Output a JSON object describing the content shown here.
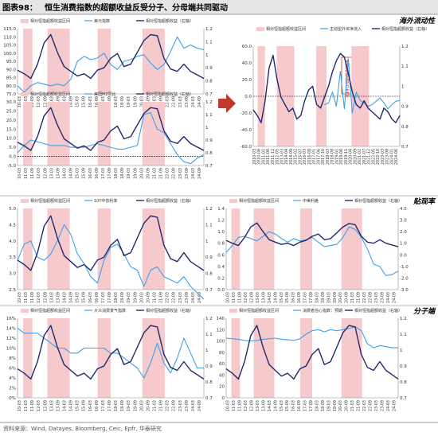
{
  "figure": {
    "label": "图表98：",
    "title": "恒生消费指数的超额收益反受分子、分母端共同驱动",
    "source": "资料来源：Wind, Datayes, Bloomberg, Ceic, Epfr, 华泰研究",
    "colors": {
      "title_bar": "#e6e6e6",
      "border": "#9a9a9a",
      "dark": "#1f2a6b",
      "light": "#3ea0e6",
      "shade": "#f6c9cd",
      "arrow": "#c0392b",
      "divider": "#bbbbbb"
    }
  },
  "sections": [
    {
      "label": "海外流动性"
    },
    {
      "label": "贴现率"
    },
    {
      "label": "分子端"
    }
  ],
  "annotations": [
    {
      "text": "主动型外资占主导"
    }
  ],
  "chart_data": [
    {
      "id": "usd",
      "type": "line",
      "legend": [
        "相对恒指超额收益区间",
        "美元指数",
        "相对恒指超额收益（右轴）"
      ],
      "left_ticks": [
        "115.0",
        "110.0",
        "105.0",
        "100.0",
        "95.0",
        "90.0",
        "85.0",
        "80.0",
        "75.0"
      ],
      "right_ticks": [
        "1.2",
        "1.1",
        "1",
        "0.9",
        "0.8",
        "0.7"
      ],
      "ylim_left": [
        75,
        115
      ],
      "ylim_right": [
        0.65,
        1.2
      ],
      "x_ticks": [
        "10-03",
        "11-03",
        "11-09",
        "12-03",
        "12-09",
        "13-03",
        "13-09",
        "14-03",
        "14-09",
        "15-03",
        "15-09",
        "16-03",
        "16-09",
        "17-03",
        "17-09",
        "18-03",
        "18-09",
        "19-03",
        "19-09",
        "20-03",
        "20-09",
        "21-03",
        "21-09",
        "22-03",
        "22-09",
        "23-03",
        "23-09",
        "24-03",
        "24-09"
      ],
      "shade": [
        [
          0.03,
          0.08
        ],
        [
          0.16,
          0.28
        ],
        [
          0.43,
          0.5
        ],
        [
          0.67,
          0.79
        ]
      ],
      "series": [
        {
          "name": "美元指数",
          "axis": "left",
          "values": [
            80,
            76,
            80,
            82,
            81,
            80,
            81,
            80,
            84,
            95,
            98,
            96,
            97,
            100,
            93,
            90,
            95,
            96,
            98,
            99,
            94,
            90,
            93,
            101,
            110,
            103,
            105,
            103,
            102
          ]
        },
        {
          "name": "相对恒指超额收益（右轴）",
          "axis": "right",
          "values": [
            0.85,
            0.82,
            0.78,
            0.9,
            1.08,
            1.15,
            1.0,
            0.88,
            0.84,
            0.8,
            0.82,
            0.78,
            0.85,
            0.87,
            0.95,
            0.99,
            0.88,
            0.9,
            1.0,
            1.1,
            1.15,
            1.14,
            0.95,
            0.86,
            0.84,
            0.9,
            0.84,
            0.81,
            0.78
          ]
        }
      ]
    },
    {
      "id": "rmb",
      "type": "line",
      "legend": [
        "相对恒指超额收益区间",
        "美国M2同比",
        "相对恒指超额收益（右轴）"
      ],
      "left_ticks": [
        "30.0",
        "25.0",
        "20.0",
        "15.0",
        "10.0",
        "5.0",
        "0.0",
        "-5.0"
      ],
      "right_ticks": [
        "1.2",
        "1.1",
        "1",
        "0.9",
        "0.8",
        "0.7"
      ],
      "ylim_left": [
        -5,
        30
      ],
      "ylim_right": [
        0.65,
        1.2
      ],
      "x_ticks": [
        "10-03",
        "11-03",
        "11-09",
        "12-03",
        "12-09",
        "13-03",
        "13-09",
        "14-03",
        "14-09",
        "15-03",
        "15-09",
        "16-03",
        "16-09",
        "17-03",
        "17-09",
        "18-03",
        "18-09",
        "19-03",
        "19-09",
        "20-03",
        "20-09",
        "21-03",
        "21-09",
        "22-03",
        "22-09",
        "23-03",
        "23-09",
        "24-03",
        "24-09"
      ],
      "shade": [
        [
          0.03,
          0.08
        ],
        [
          0.16,
          0.28
        ],
        [
          0.43,
          0.5
        ],
        [
          0.67,
          0.79
        ]
      ],
      "series": [
        {
          "name": "美国M2同比",
          "axis": "left",
          "values": [
            2,
            6,
            9,
            8,
            7,
            6,
            6,
            6,
            5,
            5,
            5,
            6,
            7,
            6,
            5,
            4,
            4,
            5,
            6,
            23,
            24,
            15,
            13,
            7,
            1,
            -3,
            -4,
            -1,
            1
          ]
        },
        {
          "name": "相对恒指超额收益（右轴）",
          "axis": "right",
          "values": [
            0.85,
            0.82,
            0.78,
            0.9,
            1.08,
            1.15,
            1.0,
            0.88,
            0.84,
            0.8,
            0.82,
            0.78,
            0.85,
            0.87,
            0.95,
            0.99,
            0.88,
            0.9,
            1.0,
            1.1,
            1.15,
            1.14,
            0.95,
            0.86,
            0.84,
            0.9,
            0.84,
            0.81,
            0.78
          ]
        }
      ]
    },
    {
      "id": "fund",
      "type": "line",
      "legend": [
        "相对恒指超额收益区间",
        "主动型外资净流入",
        "相对恒指超额收益（右轴）"
      ],
      "left_ticks": [
        "60.0",
        "40.0",
        "20.0",
        "0.0",
        "-20.0",
        "-40.0",
        "-60.0"
      ],
      "right_ticks": [
        "1.2",
        "1.1",
        "1",
        "0.9",
        "0.8",
        "0.7"
      ],
      "ylim_left": [
        -60,
        60
      ],
      "ylim_right": [
        0.65,
        1.2
      ],
      "x_ticks": [
        "2010-03",
        "2010-08",
        "2011-01",
        "2011-06",
        "2011-12",
        "2012-05",
        "2013-03",
        "2014-04",
        "2014-09",
        "2015-02",
        "2015-07",
        "2016-03",
        "2016-08",
        "2017-01",
        "2017-06",
        "2017-10",
        "2018-03",
        "2018-08",
        "2019-01",
        "2019-06",
        "2019-11",
        "2020-04",
        "2020-09",
        "2021-02",
        "2021-07",
        "2021-12",
        "2022-05",
        "2022-10",
        "2023-03",
        "2023-08",
        "2024-01",
        "2024-06"
      ],
      "shade": [
        [
          0.03,
          0.08
        ],
        [
          0.16,
          0.28
        ],
        [
          0.43,
          0.5
        ],
        [
          0.67,
          0.79
        ]
      ],
      "series": [
        {
          "name": "主动型外资净流入",
          "axis": "left",
          "values": [
            null,
            null,
            null,
            null,
            null,
            null,
            null,
            null,
            null,
            null,
            null,
            null,
            null,
            null,
            null,
            null,
            null,
            null,
            -10,
            -8,
            5,
            -12,
            30,
            -15,
            45,
            -20,
            5,
            -5,
            -8,
            -12,
            -10,
            -6,
            -2,
            -8,
            -15,
            -10,
            -6,
            -5
          ]
        },
        {
          "name": "相对恒指超额收益（右轴）",
          "axis": "right",
          "values": [
            0.85,
            0.82,
            0.78,
            0.9,
            1.08,
            1.15,
            1.02,
            0.92,
            0.88,
            0.84,
            0.86,
            0.8,
            0.82,
            0.9,
            0.96,
            0.98,
            0.88,
            0.86,
            0.92,
            0.98,
            1.06,
            1.12,
            1.16,
            1.14,
            1.05,
            0.95,
            0.88,
            0.86,
            0.9,
            0.86,
            0.84,
            0.82,
            0.8,
            0.86,
            0.84,
            0.8,
            0.78,
            0.82
          ]
        }
      ]
    },
    {
      "id": "us10y",
      "type": "line",
      "legend": [
        "相对恒指超额收益区间",
        "10Y中债利率",
        "相对恒指超额收益（右轴）"
      ],
      "left_ticks": [
        "5.0",
        "4.5",
        "4.0",
        "3.5",
        "3.0",
        "2.5"
      ],
      "right_ticks": [
        "1.2",
        "1.1",
        "1",
        "0.9",
        "0.8",
        "0.7"
      ],
      "ylim_left": [
        2.5,
        5.0
      ],
      "ylim_right": [
        0.65,
        1.2
      ],
      "x_ticks": [
        "10-03",
        "11-03",
        "11-09",
        "12-03",
        "12-09",
        "13-03",
        "13-09",
        "14-03",
        "14-09",
        "15-03",
        "15-09",
        "16-03",
        "16-09",
        "17-03",
        "17-09",
        "18-03",
        "18-09",
        "19-03",
        "19-09",
        "20-03",
        "20-09",
        "21-03",
        "21-09",
        "22-03",
        "22-09",
        "23-03",
        "23-09",
        "24-03",
        "24-09"
      ],
      "shade": [
        [
          0.03,
          0.08
        ],
        [
          0.16,
          0.28
        ],
        [
          0.43,
          0.5
        ],
        [
          0.67,
          0.79
        ]
      ],
      "series": [
        {
          "name": "10Y中债利率",
          "axis": "left",
          "values": [
            3.4,
            3.9,
            4.0,
            3.5,
            3.4,
            3.6,
            4.0,
            4.5,
            4.2,
            3.6,
            3.3,
            2.9,
            2.7,
            3.4,
            3.8,
            3.9,
            3.6,
            3.2,
            3.1,
            2.6,
            3.1,
            3.2,
            2.9,
            2.8,
            2.7,
            2.9,
            2.6,
            2.4,
            2.2
          ]
        },
        {
          "name": "相对恒指超额收益（右轴）",
          "axis": "right",
          "values": [
            0.85,
            0.82,
            0.78,
            0.9,
            1.08,
            1.15,
            1.0,
            0.88,
            0.84,
            0.8,
            0.82,
            0.78,
            0.85,
            0.87,
            0.95,
            0.99,
            0.88,
            0.9,
            1.0,
            1.1,
            1.15,
            1.14,
            0.95,
            0.86,
            0.84,
            0.9,
            0.84,
            0.81,
            0.78
          ]
        }
      ]
    },
    {
      "id": "rate",
      "type": "line",
      "legend": [
        "相对恒指超额收益区间",
        "中美利差",
        "相对恒指超额收益（右轴）"
      ],
      "left_ticks": [
        "1.4",
        "1.2",
        "1.0",
        "0.8",
        "0.6",
        "0.4",
        "0.2",
        "0.0"
      ],
      "right_ticks": [
        "4.0",
        "3.0",
        "2.0",
        "1.0",
        "0.0",
        "-1.0",
        "-2.0",
        "-3.0"
      ],
      "ylim_left": [
        0,
        1.4
      ],
      "ylim_right": [
        -3,
        4
      ],
      "x_ticks": [
        "10-03",
        "11-03",
        "11-09",
        "12-03",
        "12-09",
        "13-03",
        "13-09",
        "14-03",
        "14-09",
        "15-03",
        "15-09",
        "16-03",
        "16-09",
        "17-03",
        "17-09",
        "18-03",
        "18-09",
        "19-03",
        "19-09",
        "20-03",
        "20-09",
        "21-03",
        "21-09",
        "22-03",
        "22-09",
        "23-03",
        "23-09",
        "24-03",
        "24-09"
      ],
      "shade": [
        [
          0.03,
          0.08
        ],
        [
          0.16,
          0.28
        ],
        [
          0.43,
          0.5
        ],
        [
          0.67,
          0.79
        ]
      ],
      "series": [
        {
          "name": "中美利差",
          "axis": "right",
          "values": [
            0.2,
            0.8,
            1.5,
            1.6,
            1.4,
            1.2,
            1.6,
            2.0,
            1.8,
            1.4,
            1.1,
            1.4,
            1.2,
            1.3,
            1.5,
            1.1,
            0.7,
            0.8,
            0.9,
            1.5,
            2.4,
            2.2,
            1.5,
            0.5,
            -0.8,
            -1.0,
            -1.8,
            -1.7,
            -1.4
          ]
        },
        {
          "name": "相对恒指超额收益（右轴）",
          "axis": "left",
          "values": [
            0.85,
            0.8,
            0.76,
            0.9,
            1.08,
            1.15,
            1.0,
            0.86,
            0.82,
            0.78,
            0.8,
            0.76,
            0.82,
            0.85,
            0.92,
            0.96,
            0.86,
            0.88,
            0.98,
            1.08,
            1.14,
            1.12,
            0.92,
            0.82,
            0.8,
            0.86,
            0.8,
            0.77,
            0.74
          ]
        }
      ]
    },
    {
      "id": "consumer",
      "type": "line",
      "legend": [
        "相对恒指超额收益区间",
        "大众消费景气指数",
        "相对恒指超额收益（右轴）"
      ],
      "left_ticks": [
        "16%",
        "14%",
        "12%",
        "10%",
        "8%",
        "6%",
        "4%",
        "2%",
        "0%"
      ],
      "right_ticks": [
        "1.2",
        "1.1",
        "1",
        "0.9",
        "0.8",
        "0.7"
      ],
      "ylim_left": [
        0,
        16
      ],
      "ylim_right": [
        0.65,
        1.2
      ],
      "x_ticks": [
        "10-03",
        "11-03",
        "11-09",
        "12-03",
        "12-09",
        "13-03",
        "13-09",
        "14-03",
        "14-09",
        "15-03",
        "15-09",
        "16-03",
        "16-09",
        "17-03",
        "17-09",
        "18-03",
        "18-09",
        "19-03",
        "19-09",
        "20-03",
        "20-09",
        "21-03",
        "21-09",
        "22-03",
        "22-09",
        "23-03",
        "23-09",
        "24-03",
        "24-09"
      ],
      "shade": [
        [
          0.03,
          0.08
        ],
        [
          0.16,
          0.28
        ],
        [
          0.43,
          0.5
        ],
        [
          0.67,
          0.79
        ]
      ],
      "series": [
        {
          "name": "大众消费景气指数",
          "axis": "left",
          "values": [
            14,
            13,
            13,
            13,
            12,
            11,
            10,
            10,
            9,
            9,
            10,
            10,
            10,
            10,
            9,
            9,
            8,
            7,
            6,
            4,
            7,
            11,
            7,
            5,
            8,
            12,
            9,
            6,
            6
          ]
        },
        {
          "name": "相对恒指超额收益（右轴）",
          "axis": "right",
          "values": [
            0.85,
            0.82,
            0.78,
            0.9,
            1.08,
            1.15,
            1.0,
            0.88,
            0.84,
            0.8,
            0.82,
            0.78,
            0.85,
            0.87,
            0.95,
            0.99,
            0.88,
            0.9,
            1.0,
            1.1,
            1.15,
            1.14,
            0.95,
            0.86,
            0.84,
            0.9,
            0.84,
            0.81,
            0.78
          ]
        }
      ]
    },
    {
      "id": "confidence",
      "type": "line",
      "legend": [
        "相对恒指超额收益区间",
        "消费者信心指数：预期",
        "相对恒指超额收益（右轴）"
      ],
      "left_ticks": [
        "140",
        "120",
        "100",
        "80",
        "60",
        "40",
        "20",
        "0"
      ],
      "right_ticks": [
        "1.2",
        "1.1",
        "1",
        "0.9",
        "0.8",
        "0.7"
      ],
      "ylim_left": [
        0,
        140
      ],
      "ylim_right": [
        0.65,
        1.2
      ],
      "x_ticks": [
        "10-03",
        "11-03",
        "11-09",
        "12-03",
        "12-09",
        "13-03",
        "13-09",
        "14-03",
        "14-09",
        "15-03",
        "15-09",
        "16-03",
        "16-09",
        "17-03",
        "17-09",
        "18-03",
        "18-09",
        "19-03",
        "19-09",
        "20-03",
        "20-09",
        "21-03",
        "21-09",
        "22-03",
        "22-09",
        "23-03",
        "23-09",
        "24-03",
        "24-09"
      ],
      "shade": [
        [
          0.03,
          0.08
        ],
        [
          0.16,
          0.28
        ],
        [
          0.43,
          0.5
        ],
        [
          0.67,
          0.79
        ]
      ],
      "series": [
        {
          "name": "消费者信心指数：预期",
          "axis": "left",
          "values": [
            105,
            104,
            103,
            101,
            100,
            101,
            103,
            104,
            105,
            103,
            102,
            101,
            104,
            112,
            118,
            120,
            116,
            120,
            118,
            120,
            122,
            125,
            118,
            95,
            88,
            92,
            90,
            88,
            88
          ]
        },
        {
          "name": "相对恒指超额收益（右轴）",
          "axis": "right",
          "values": [
            0.85,
            0.82,
            0.78,
            0.9,
            1.08,
            1.15,
            1.0,
            0.88,
            0.84,
            0.8,
            0.82,
            0.78,
            0.85,
            0.87,
            0.95,
            0.99,
            0.88,
            0.9,
            1.0,
            1.1,
            1.15,
            1.14,
            0.95,
            0.86,
            0.84,
            0.9,
            0.84,
            0.81,
            0.78
          ]
        }
      ]
    }
  ]
}
